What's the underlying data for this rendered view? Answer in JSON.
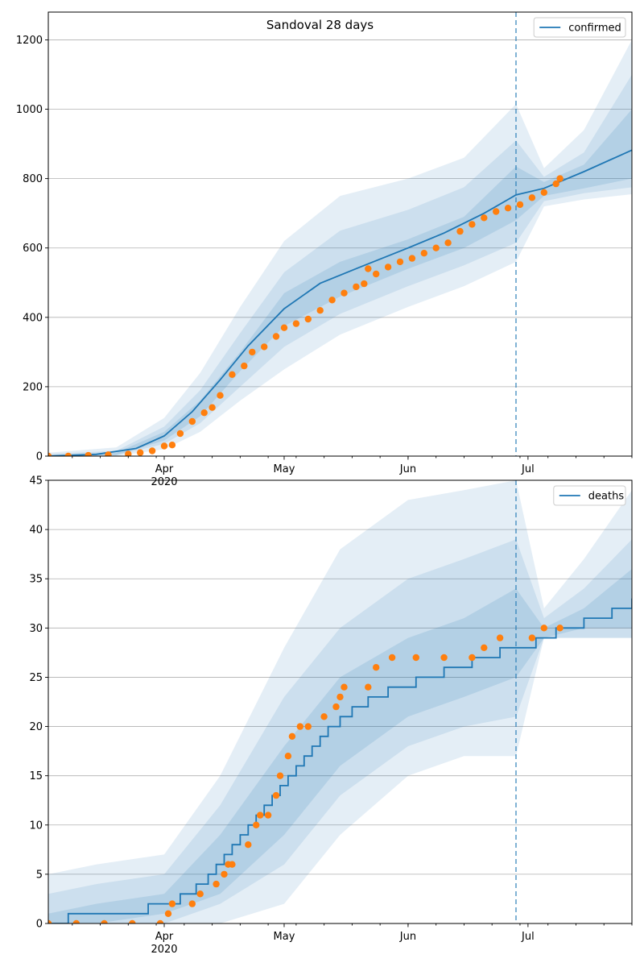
{
  "colors": {
    "line": "#1f77b4",
    "points": "#ff7f0e",
    "band": "#1f77b4",
    "grid": "#b0b0b0"
  },
  "chart_data": [
    {
      "type": "line",
      "title": "Sandoval 28 days",
      "xlabel": "",
      "ylabel": "",
      "xlim": [
        "2020-03-03",
        "2020-07-27"
      ],
      "ylim": [
        0,
        1280
      ],
      "yticks": [
        0,
        200,
        400,
        600,
        800,
        1000,
        1200
      ],
      "xticks": [
        {
          "date": "2020-04-01",
          "label": "Apr",
          "sublabel": "2020"
        },
        {
          "date": "2020-05-01",
          "label": "May",
          "sublabel": ""
        },
        {
          "date": "2020-06-01",
          "label": "Jun",
          "sublabel": ""
        },
        {
          "date": "2020-07-01",
          "label": "Jul",
          "sublabel": ""
        }
      ],
      "grid": "horizontal",
      "legend_position": "top-right",
      "forecast_start": "2020-06-28",
      "series": [
        {
          "name": "confirmed",
          "kind": "line",
          "x": [
            "2020-03-03",
            "2020-03-15",
            "2020-03-25",
            "2020-04-01",
            "2020-04-08",
            "2020-04-15",
            "2020-04-22",
            "2020-05-01",
            "2020-05-10",
            "2020-05-20",
            "2020-06-01",
            "2020-06-10",
            "2020-06-20",
            "2020-06-28",
            "2020-07-05",
            "2020-07-15",
            "2020-07-27"
          ],
          "y": [
            0,
            5,
            22,
            58,
            128,
            220,
            318,
            425,
            498,
            545,
            600,
            643,
            700,
            753,
            772,
            820,
            882
          ]
        },
        {
          "name": "",
          "kind": "points",
          "x": [
            "2020-03-03",
            "2020-03-08",
            "2020-03-13",
            "2020-03-18",
            "2020-03-23",
            "2020-03-26",
            "2020-03-29",
            "2020-04-01",
            "2020-04-03",
            "2020-04-05",
            "2020-04-08",
            "2020-04-11",
            "2020-04-13",
            "2020-04-15",
            "2020-04-18",
            "2020-04-21",
            "2020-04-23",
            "2020-04-26",
            "2020-04-29",
            "2020-05-01",
            "2020-05-04",
            "2020-05-07",
            "2020-05-10",
            "2020-05-13",
            "2020-05-16",
            "2020-05-19",
            "2020-05-21",
            "2020-05-22",
            "2020-05-24",
            "2020-05-27",
            "2020-05-30",
            "2020-06-02",
            "2020-06-05",
            "2020-06-08",
            "2020-06-11",
            "2020-06-14",
            "2020-06-17",
            "2020-06-20",
            "2020-06-23",
            "2020-06-26",
            "2020-06-29",
            "2020-07-02",
            "2020-07-05",
            "2020-07-08",
            "2020-07-09"
          ],
          "y": [
            0,
            0,
            2,
            4,
            6,
            10,
            15,
            29,
            32,
            65,
            100,
            125,
            140,
            175,
            235,
            260,
            300,
            315,
            345,
            370,
            382,
            395,
            420,
            450,
            470,
            488,
            497,
            540,
            525,
            545,
            560,
            570,
            585,
            600,
            615,
            648,
            668,
            687,
            705,
            715,
            725,
            745,
            760,
            785,
            800
          ]
        }
      ],
      "bands": [
        {
          "level": "outer",
          "x": [
            "2020-03-03",
            "2020-03-20",
            "2020-04-01",
            "2020-04-10",
            "2020-04-20",
            "2020-05-01",
            "2020-05-15",
            "2020-06-01",
            "2020-06-15",
            "2020-06-28",
            "2020-07-05",
            "2020-07-15",
            "2020-07-27"
          ],
          "lower": [
            0,
            0,
            20,
            70,
            160,
            250,
            350,
            430,
            490,
            560,
            720,
            740,
            755
          ],
          "upper": [
            10,
            25,
            110,
            240,
            430,
            620,
            750,
            800,
            860,
            1015,
            830,
            940,
            1200
          ]
        },
        {
          "level": "middle",
          "x": [
            "2020-03-03",
            "2020-03-20",
            "2020-04-01",
            "2020-04-10",
            "2020-04-20",
            "2020-05-01",
            "2020-05-15",
            "2020-06-01",
            "2020-06-15",
            "2020-06-28",
            "2020-07-05",
            "2020-07-15",
            "2020-07-27"
          ],
          "lower": [
            0,
            2,
            35,
            95,
            200,
            315,
            410,
            490,
            550,
            615,
            735,
            758,
            775
          ],
          "upper": [
            6,
            15,
            85,
            190,
            355,
            530,
            650,
            710,
            775,
            910,
            805,
            875,
            1100
          ]
        },
        {
          "level": "inner",
          "x": [
            "2020-03-03",
            "2020-03-20",
            "2020-04-01",
            "2020-04-10",
            "2020-04-20",
            "2020-05-01",
            "2020-05-15",
            "2020-06-01",
            "2020-06-15",
            "2020-06-28",
            "2020-07-05",
            "2020-07-15",
            "2020-07-27"
          ],
          "lower": [
            0,
            3,
            45,
            115,
            245,
            375,
            460,
            540,
            600,
            680,
            750,
            772,
            800
          ],
          "upper": [
            3,
            10,
            70,
            160,
            300,
            470,
            560,
            625,
            690,
            835,
            790,
            840,
            1000
          ]
        }
      ]
    },
    {
      "type": "line",
      "title": "",
      "xlabel": "",
      "ylabel": "",
      "xlim": [
        "2020-03-03",
        "2020-07-27"
      ],
      "ylim": [
        0,
        45
      ],
      "yticks": [
        0,
        5,
        10,
        15,
        20,
        25,
        30,
        35,
        40,
        45
      ],
      "xticks": [
        {
          "date": "2020-04-01",
          "label": "Apr",
          "sublabel": "2020"
        },
        {
          "date": "2020-05-01",
          "label": "May",
          "sublabel": ""
        },
        {
          "date": "2020-06-01",
          "label": "Jun",
          "sublabel": ""
        },
        {
          "date": "2020-07-01",
          "label": "Jul",
          "sublabel": ""
        }
      ],
      "grid": "horizontal",
      "legend_position": "top-right",
      "forecast_start": "2020-06-28",
      "series": [
        {
          "name": "deaths",
          "kind": "step",
          "x": [
            "2020-03-03",
            "2020-03-08",
            "2020-03-28",
            "2020-04-05",
            "2020-04-09",
            "2020-04-12",
            "2020-04-14",
            "2020-04-16",
            "2020-04-18",
            "2020-04-20",
            "2020-04-22",
            "2020-04-24",
            "2020-04-26",
            "2020-04-28",
            "2020-04-30",
            "2020-05-02",
            "2020-05-04",
            "2020-05-06",
            "2020-05-08",
            "2020-05-10",
            "2020-05-12",
            "2020-05-15",
            "2020-05-18",
            "2020-05-22",
            "2020-05-27",
            "2020-06-03",
            "2020-06-10",
            "2020-06-17",
            "2020-06-24",
            "2020-07-03",
            "2020-07-08",
            "2020-07-15",
            "2020-07-22",
            "2020-07-27"
          ],
          "y": [
            0,
            1,
            2,
            3,
            4,
            5,
            6,
            7,
            8,
            9,
            10,
            11,
            12,
            13,
            14,
            15,
            16,
            17,
            18,
            19,
            20,
            21,
            22,
            23,
            24,
            25,
            26,
            27,
            28,
            29,
            30,
            31,
            32,
            33
          ]
        },
        {
          "name": "",
          "kind": "points",
          "x": [
            "2020-03-03",
            "2020-03-10",
            "2020-03-17",
            "2020-03-24",
            "2020-03-31",
            "2020-04-02",
            "2020-04-03",
            "2020-04-08",
            "2020-04-10",
            "2020-04-14",
            "2020-04-16",
            "2020-04-17",
            "2020-04-18",
            "2020-04-22",
            "2020-04-24",
            "2020-04-25",
            "2020-04-27",
            "2020-04-29",
            "2020-04-30",
            "2020-05-02",
            "2020-05-03",
            "2020-05-05",
            "2020-05-07",
            "2020-05-11",
            "2020-05-14",
            "2020-05-15",
            "2020-05-16",
            "2020-05-22",
            "2020-05-24",
            "2020-05-28",
            "2020-06-03",
            "2020-06-10",
            "2020-06-17",
            "2020-06-20",
            "2020-06-24",
            "2020-07-02",
            "2020-07-05",
            "2020-07-09"
          ],
          "y": [
            0,
            0,
            0,
            0,
            0,
            1,
            2,
            2,
            3,
            4,
            5,
            6,
            6,
            8,
            10,
            11,
            11,
            13,
            15,
            17,
            19,
            20,
            20,
            21,
            22,
            23,
            24,
            24,
            26,
            27,
            27,
            27,
            27,
            28,
            29,
            29,
            30,
            30
          ]
        }
      ],
      "bands": [
        {
          "level": "outer",
          "x": [
            "2020-03-03",
            "2020-03-15",
            "2020-04-01",
            "2020-04-15",
            "2020-05-01",
            "2020-05-15",
            "2020-06-01",
            "2020-06-15",
            "2020-06-28",
            "2020-07-05",
            "2020-07-15",
            "2020-07-27"
          ],
          "lower": [
            0,
            0,
            0,
            0,
            2,
            9,
            15,
            17,
            17,
            29,
            29,
            29
          ],
          "upper": [
            5,
            6,
            7,
            15,
            28,
            38,
            43,
            44,
            45,
            32,
            37,
            44
          ]
        },
        {
          "level": "middle",
          "x": [
            "2020-03-03",
            "2020-03-15",
            "2020-04-01",
            "2020-04-15",
            "2020-05-01",
            "2020-05-15",
            "2020-06-01",
            "2020-06-15",
            "2020-06-28",
            "2020-07-05",
            "2020-07-15",
            "2020-07-27"
          ],
          "lower": [
            0,
            0,
            0,
            2,
            6,
            13,
            18,
            20,
            21,
            29,
            29,
            29
          ],
          "upper": [
            3,
            4,
            5,
            12,
            23,
            30,
            35,
            37,
            39,
            31,
            34,
            39
          ]
        },
        {
          "level": "inner",
          "x": [
            "2020-03-03",
            "2020-03-15",
            "2020-04-01",
            "2020-04-15",
            "2020-05-01",
            "2020-05-15",
            "2020-06-01",
            "2020-06-15",
            "2020-06-28",
            "2020-07-05",
            "2020-07-15",
            "2020-07-27"
          ],
          "lower": [
            0,
            0,
            1,
            3,
            9,
            16,
            21,
            23,
            25,
            29,
            30,
            30
          ],
          "upper": [
            1,
            2,
            3,
            9,
            18,
            25,
            29,
            31,
            34,
            30,
            32,
            36
          ]
        }
      ]
    }
  ]
}
